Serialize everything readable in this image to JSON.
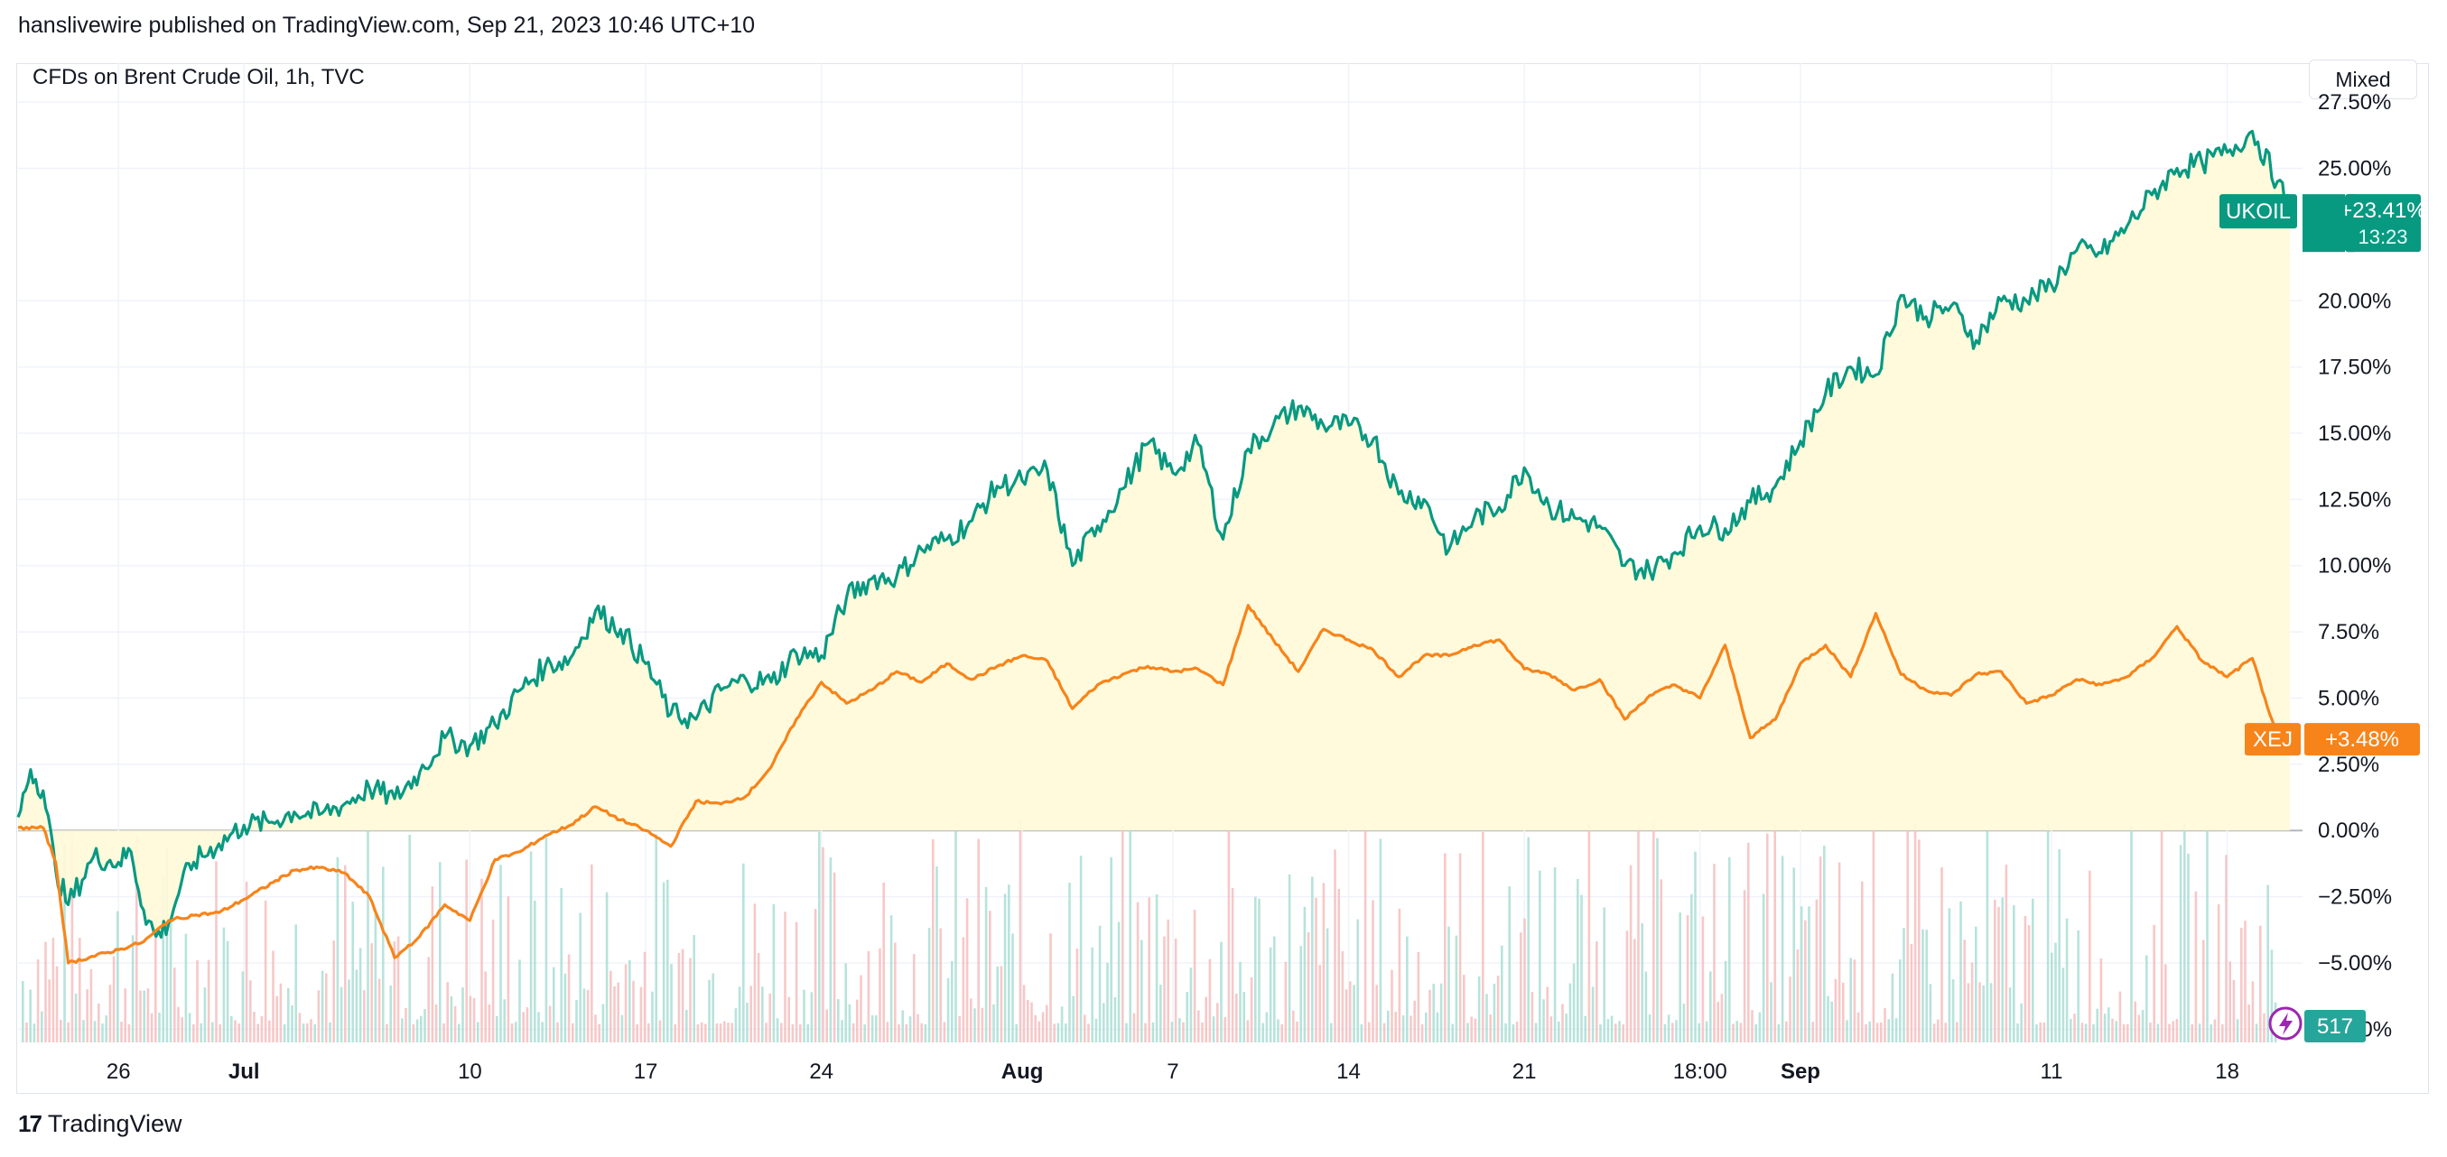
{
  "header": {
    "text": "hanslivewire published on TradingView.com, Sep 21, 2023 10:46 UTC+10"
  },
  "symbol_title": "CFDs on Brent Crude Oil, 1h, TVC",
  "scale_button": "Mixed",
  "footer": {
    "brand": "TradingView",
    "logo_glyph": "17"
  },
  "colors": {
    "ukoil": "#089981",
    "xej": "#f7841a",
    "fill": "#fff9d8",
    "grid": "#f0f3fa",
    "zero": "#b2b5be",
    "vol_up": "#9fd9cf",
    "vol_down": "#f4b5b5",
    "volume_badge": "#26a69a",
    "flash": "#9c27b0"
  },
  "icons": {
    "flash": "lightning-bolt-icon"
  },
  "chart_data": {
    "type": "line",
    "y_unit": "%",
    "ylim": [
      -8.0,
      28.8
    ],
    "y_ticks": [
      27.5,
      25.0,
      20.0,
      17.5,
      15.0,
      12.5,
      10.0,
      7.5,
      5.0,
      2.5,
      0.0,
      -2.5,
      -5.0,
      -7.5
    ],
    "y_tick_labels": [
      "27.50%",
      "25.00%",
      "20.00%",
      "17.50%",
      "15.00%",
      "12.50%",
      "10.00%",
      "7.50%",
      "5.00%",
      "2.50%",
      "0.00%",
      "−2.50%",
      "−5.00%",
      "−7.50%"
    ],
    "xlim": [
      "2023-06-22",
      "2023-09-21"
    ],
    "x_ticks": [
      {
        "date": "2023-06-26",
        "label": "26",
        "bold": false
      },
      {
        "date": "2023-07-01",
        "label": "Jul",
        "bold": true
      },
      {
        "date": "2023-07-10",
        "label": "10",
        "bold": false
      },
      {
        "date": "2023-07-17",
        "label": "17",
        "bold": false
      },
      {
        "date": "2023-07-24",
        "label": "24",
        "bold": false
      },
      {
        "date": "2023-08-01",
        "label": "Aug",
        "bold": true
      },
      {
        "date": "2023-08-07",
        "label": "7",
        "bold": false
      },
      {
        "date": "2023-08-14",
        "label": "14",
        "bold": false
      },
      {
        "date": "2023-08-21",
        "label": "21",
        "bold": false
      },
      {
        "date": "2023-08-28",
        "label": "18:00",
        "bold": false
      },
      {
        "date": "2023-09-01",
        "label": "Sep",
        "bold": true
      },
      {
        "date": "2023-09-11",
        "label": "11",
        "bold": false
      },
      {
        "date": "2023-09-18",
        "label": "18",
        "bold": false
      }
    ],
    "series": [
      {
        "name": "UKOIL",
        "color": "#089981",
        "last_value_label": "+23.41%",
        "countdown": "13:23",
        "points": [
          [
            "2023-06-22",
            0.5
          ],
          [
            "2023-06-22T12:00",
            2.3
          ],
          [
            "2023-06-23",
            1.5
          ],
          [
            "2023-06-23T12:00",
            -1.5
          ],
          [
            "2023-06-24",
            -2.8
          ],
          [
            "2023-06-25",
            -1.0
          ],
          [
            "2023-06-26",
            -1.2
          ],
          [
            "2023-06-26T12:00",
            -0.8
          ],
          [
            "2023-06-27",
            -3.0
          ],
          [
            "2023-06-27T12:00",
            -4.0
          ],
          [
            "2023-06-28",
            -3.5
          ],
          [
            "2023-06-28T12:00",
            -2.0
          ],
          [
            "2023-06-29",
            -1.2
          ],
          [
            "2023-06-30",
            -0.5
          ],
          [
            "2023-07-01",
            0.2
          ],
          [
            "2023-07-02",
            0.3
          ],
          [
            "2023-07-03",
            0.7
          ],
          [
            "2023-07-04",
            0.6
          ],
          [
            "2023-07-05",
            1.0
          ],
          [
            "2023-07-06",
            1.6
          ],
          [
            "2023-07-07",
            1.2
          ],
          [
            "2023-07-08",
            2.2
          ],
          [
            "2023-07-09",
            3.5
          ],
          [
            "2023-07-10",
            3.2
          ],
          [
            "2023-07-11",
            4.0
          ],
          [
            "2023-07-12",
            5.3
          ],
          [
            "2023-07-13",
            6.2
          ],
          [
            "2023-07-14",
            6.5
          ],
          [
            "2023-07-15",
            8.3
          ],
          [
            "2023-07-16",
            7.6
          ],
          [
            "2023-07-17",
            6.3
          ],
          [
            "2023-07-18",
            4.4
          ],
          [
            "2023-07-19",
            4.2
          ],
          [
            "2023-07-20",
            5.3
          ],
          [
            "2023-07-21",
            5.7
          ],
          [
            "2023-07-22",
            5.6
          ],
          [
            "2023-07-23",
            6.7
          ],
          [
            "2023-07-24",
            6.6
          ],
          [
            "2023-07-25",
            8.8
          ],
          [
            "2023-07-26",
            9.5
          ],
          [
            "2023-07-27",
            9.6
          ],
          [
            "2023-07-28",
            10.6
          ],
          [
            "2023-07-29",
            11.0
          ],
          [
            "2023-07-30",
            11.7
          ],
          [
            "2023-07-31",
            13.0
          ],
          [
            "2023-08-01",
            13.2
          ],
          [
            "2023-08-02",
            13.6
          ],
          [
            "2023-08-03",
            10.0
          ],
          [
            "2023-08-04",
            11.5
          ],
          [
            "2023-08-05",
            12.9
          ],
          [
            "2023-08-06",
            14.6
          ],
          [
            "2023-08-07",
            13.5
          ],
          [
            "2023-08-08",
            14.6
          ],
          [
            "2023-08-09",
            11.0
          ],
          [
            "2023-08-10",
            14.4
          ],
          [
            "2023-08-11",
            15.3
          ],
          [
            "2023-08-12",
            16.0
          ],
          [
            "2023-08-13",
            15.3
          ],
          [
            "2023-08-14",
            15.3
          ],
          [
            "2023-08-15",
            14.8
          ],
          [
            "2023-08-16",
            12.7
          ],
          [
            "2023-08-17",
            12.5
          ],
          [
            "2023-08-18",
            10.6
          ],
          [
            "2023-08-19",
            11.8
          ],
          [
            "2023-08-20",
            12.2
          ],
          [
            "2023-08-21",
            13.7
          ],
          [
            "2023-08-22",
            12.2
          ],
          [
            "2023-08-23",
            11.8
          ],
          [
            "2023-08-24",
            11.5
          ],
          [
            "2023-08-25",
            10.0
          ],
          [
            "2023-08-26",
            9.8
          ],
          [
            "2023-08-27",
            10.5
          ],
          [
            "2023-08-28",
            11.5
          ],
          [
            "2023-08-29",
            11.4
          ],
          [
            "2023-08-30",
            12.4
          ],
          [
            "2023-08-31",
            13.0
          ],
          [
            "2023-09-01",
            14.7
          ],
          [
            "2023-09-02",
            16.5
          ],
          [
            "2023-09-03",
            17.5
          ],
          [
            "2023-09-04",
            17.2
          ],
          [
            "2023-09-05",
            20.2
          ],
          [
            "2023-09-06",
            19.4
          ],
          [
            "2023-09-07",
            19.8
          ],
          [
            "2023-09-08",
            18.5
          ],
          [
            "2023-09-09",
            20.0
          ],
          [
            "2023-09-10",
            20.0
          ],
          [
            "2023-09-11",
            20.6
          ],
          [
            "2023-09-12",
            21.9
          ],
          [
            "2023-09-13",
            21.8
          ],
          [
            "2023-09-14",
            22.8
          ],
          [
            "2023-09-15",
            24.0
          ],
          [
            "2023-09-16",
            25.0
          ],
          [
            "2023-09-17",
            25.2
          ],
          [
            "2023-09-18",
            25.6
          ],
          [
            "2023-09-19",
            26.4
          ],
          [
            "2023-09-20",
            24.5
          ],
          [
            "2023-09-20T12:00",
            23.41
          ]
        ]
      },
      {
        "name": "XEJ",
        "color": "#f7841a",
        "last_value_label": "+3.48%",
        "points": [
          [
            "2023-06-22",
            0.1
          ],
          [
            "2023-06-23",
            0.1
          ],
          [
            "2023-06-23T12:00",
            -1.2
          ],
          [
            "2023-06-24",
            -5.0
          ],
          [
            "2023-06-26",
            -4.5
          ],
          [
            "2023-06-27",
            -4.2
          ],
          [
            "2023-06-28",
            -3.4
          ],
          [
            "2023-06-29",
            -3.2
          ],
          [
            "2023-06-30",
            -3.1
          ],
          [
            "2023-07-01",
            -2.6
          ],
          [
            "2023-07-03",
            -1.5
          ],
          [
            "2023-07-04",
            -1.4
          ],
          [
            "2023-07-05",
            -1.6
          ],
          [
            "2023-07-06",
            -2.5
          ],
          [
            "2023-07-07",
            -4.8
          ],
          [
            "2023-07-08",
            -4.0
          ],
          [
            "2023-07-09",
            -2.8
          ],
          [
            "2023-07-10",
            -3.4
          ],
          [
            "2023-07-11",
            -1.1
          ],
          [
            "2023-07-12",
            -0.8
          ],
          [
            "2023-07-13",
            -0.2
          ],
          [
            "2023-07-14",
            0.2
          ],
          [
            "2023-07-15",
            0.9
          ],
          [
            "2023-07-16",
            0.4
          ],
          [
            "2023-07-17",
            0.0
          ],
          [
            "2023-07-18",
            -0.6
          ],
          [
            "2023-07-19",
            1.1
          ],
          [
            "2023-07-20",
            1.0
          ],
          [
            "2023-07-21",
            1.3
          ],
          [
            "2023-07-22",
            2.4
          ],
          [
            "2023-07-23",
            4.2
          ],
          [
            "2023-07-24",
            5.6
          ],
          [
            "2023-07-25",
            4.8
          ],
          [
            "2023-07-26",
            5.3
          ],
          [
            "2023-07-27",
            6.0
          ],
          [
            "2023-07-28",
            5.6
          ],
          [
            "2023-07-29",
            6.3
          ],
          [
            "2023-07-30",
            5.7
          ],
          [
            "2023-07-31",
            6.2
          ],
          [
            "2023-08-01",
            6.6
          ],
          [
            "2023-08-02",
            6.4
          ],
          [
            "2023-08-03",
            4.6
          ],
          [
            "2023-08-04",
            5.5
          ],
          [
            "2023-08-05",
            5.9
          ],
          [
            "2023-08-06",
            6.2
          ],
          [
            "2023-08-07",
            6.0
          ],
          [
            "2023-08-08",
            6.1
          ],
          [
            "2023-08-09",
            5.5
          ],
          [
            "2023-08-10",
            8.5
          ],
          [
            "2023-08-11",
            7.2
          ],
          [
            "2023-08-12",
            6.0
          ],
          [
            "2023-08-13",
            7.6
          ],
          [
            "2023-08-14",
            7.2
          ],
          [
            "2023-08-15",
            6.8
          ],
          [
            "2023-08-16",
            5.8
          ],
          [
            "2023-08-17",
            6.6
          ],
          [
            "2023-08-18",
            6.6
          ],
          [
            "2023-08-19",
            7.0
          ],
          [
            "2023-08-20",
            7.2
          ],
          [
            "2023-08-21",
            6.1
          ],
          [
            "2023-08-22",
            5.9
          ],
          [
            "2023-08-23",
            5.3
          ],
          [
            "2023-08-24",
            5.7
          ],
          [
            "2023-08-25",
            4.2
          ],
          [
            "2023-08-26",
            5.1
          ],
          [
            "2023-08-27",
            5.5
          ],
          [
            "2023-08-28",
            5.0
          ],
          [
            "2023-08-29",
            7.0
          ],
          [
            "2023-08-30",
            3.5
          ],
          [
            "2023-08-31",
            4.2
          ],
          [
            "2023-09-01",
            6.3
          ],
          [
            "2023-09-02",
            7.0
          ],
          [
            "2023-09-03",
            5.8
          ],
          [
            "2023-09-04",
            8.2
          ],
          [
            "2023-09-05",
            5.9
          ],
          [
            "2023-09-06",
            5.3
          ],
          [
            "2023-09-07",
            5.1
          ],
          [
            "2023-09-08",
            5.9
          ],
          [
            "2023-09-09",
            6.0
          ],
          [
            "2023-09-10",
            4.8
          ],
          [
            "2023-09-11",
            5.1
          ],
          [
            "2023-09-12",
            5.7
          ],
          [
            "2023-09-13",
            5.5
          ],
          [
            "2023-09-14",
            5.8
          ],
          [
            "2023-09-15",
            6.5
          ],
          [
            "2023-09-16",
            7.7
          ],
          [
            "2023-09-17",
            6.4
          ],
          [
            "2023-09-18",
            5.8
          ],
          [
            "2023-09-19",
            6.5
          ],
          [
            "2023-09-19T12:00",
            5.0
          ],
          [
            "2023-09-20",
            3.48
          ]
        ]
      }
    ],
    "volume": {
      "last_value_label": "517"
    },
    "grid": true,
    "legend": "price-scale labels on right"
  }
}
